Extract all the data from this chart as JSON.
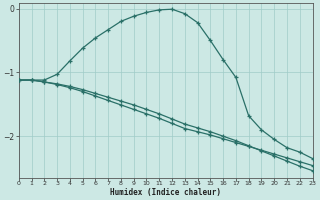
{
  "xlabel": "Humidex (Indice chaleur)",
  "background_color": "#cce8e4",
  "line_color": "#2a7068",
  "grid_color": "#a0ccc8",
  "xlim": [
    0,
    23
  ],
  "ylim": [
    -2.65,
    0.08
  ],
  "yticks": [
    0,
    -1,
    -2
  ],
  "xticks": [
    0,
    1,
    2,
    3,
    4,
    5,
    6,
    7,
    8,
    9,
    10,
    11,
    12,
    13,
    14,
    15,
    16,
    17,
    18,
    19,
    20,
    21,
    22,
    23
  ],
  "line1_x": [
    0,
    1,
    2,
    3,
    4,
    5,
    6,
    7,
    8,
    9,
    10,
    11,
    12,
    13,
    14,
    15,
    16,
    17,
    18,
    19,
    20,
    21,
    22,
    23
  ],
  "line1_y": [
    -1.12,
    -1.12,
    -1.15,
    -1.18,
    -1.22,
    -1.27,
    -1.33,
    -1.39,
    -1.45,
    -1.51,
    -1.58,
    -1.65,
    -1.73,
    -1.81,
    -1.87,
    -1.93,
    -2.0,
    -2.07,
    -2.15,
    -2.23,
    -2.31,
    -2.39,
    -2.47,
    -2.54
  ],
  "line2_x": [
    0,
    1,
    2,
    3,
    4,
    5,
    6,
    7,
    8,
    9,
    10,
    11,
    12,
    13,
    14,
    15,
    16,
    17,
    18,
    19,
    20,
    21,
    22,
    23
  ],
  "line2_y": [
    -1.12,
    -1.12,
    -1.15,
    -1.19,
    -1.24,
    -1.3,
    -1.37,
    -1.44,
    -1.51,
    -1.58,
    -1.65,
    -1.72,
    -1.8,
    -1.88,
    -1.93,
    -1.98,
    -2.04,
    -2.1,
    -2.16,
    -2.22,
    -2.28,
    -2.34,
    -2.4,
    -2.46
  ],
  "line3_x": [
    0,
    1,
    2,
    3,
    4,
    5,
    6,
    7,
    8,
    9,
    10,
    11,
    12,
    13,
    14,
    15,
    16,
    17,
    18,
    19,
    20,
    21,
    22,
    23
  ],
  "line3_y": [
    -1.12,
    -1.12,
    -1.12,
    -1.03,
    -0.82,
    -0.62,
    -0.46,
    -0.33,
    -0.2,
    -0.12,
    -0.06,
    -0.02,
    -0.01,
    -0.08,
    -0.22,
    -0.5,
    -0.8,
    -1.08,
    -1.68,
    -1.9,
    -2.05,
    -2.18,
    -2.25,
    -2.35
  ]
}
